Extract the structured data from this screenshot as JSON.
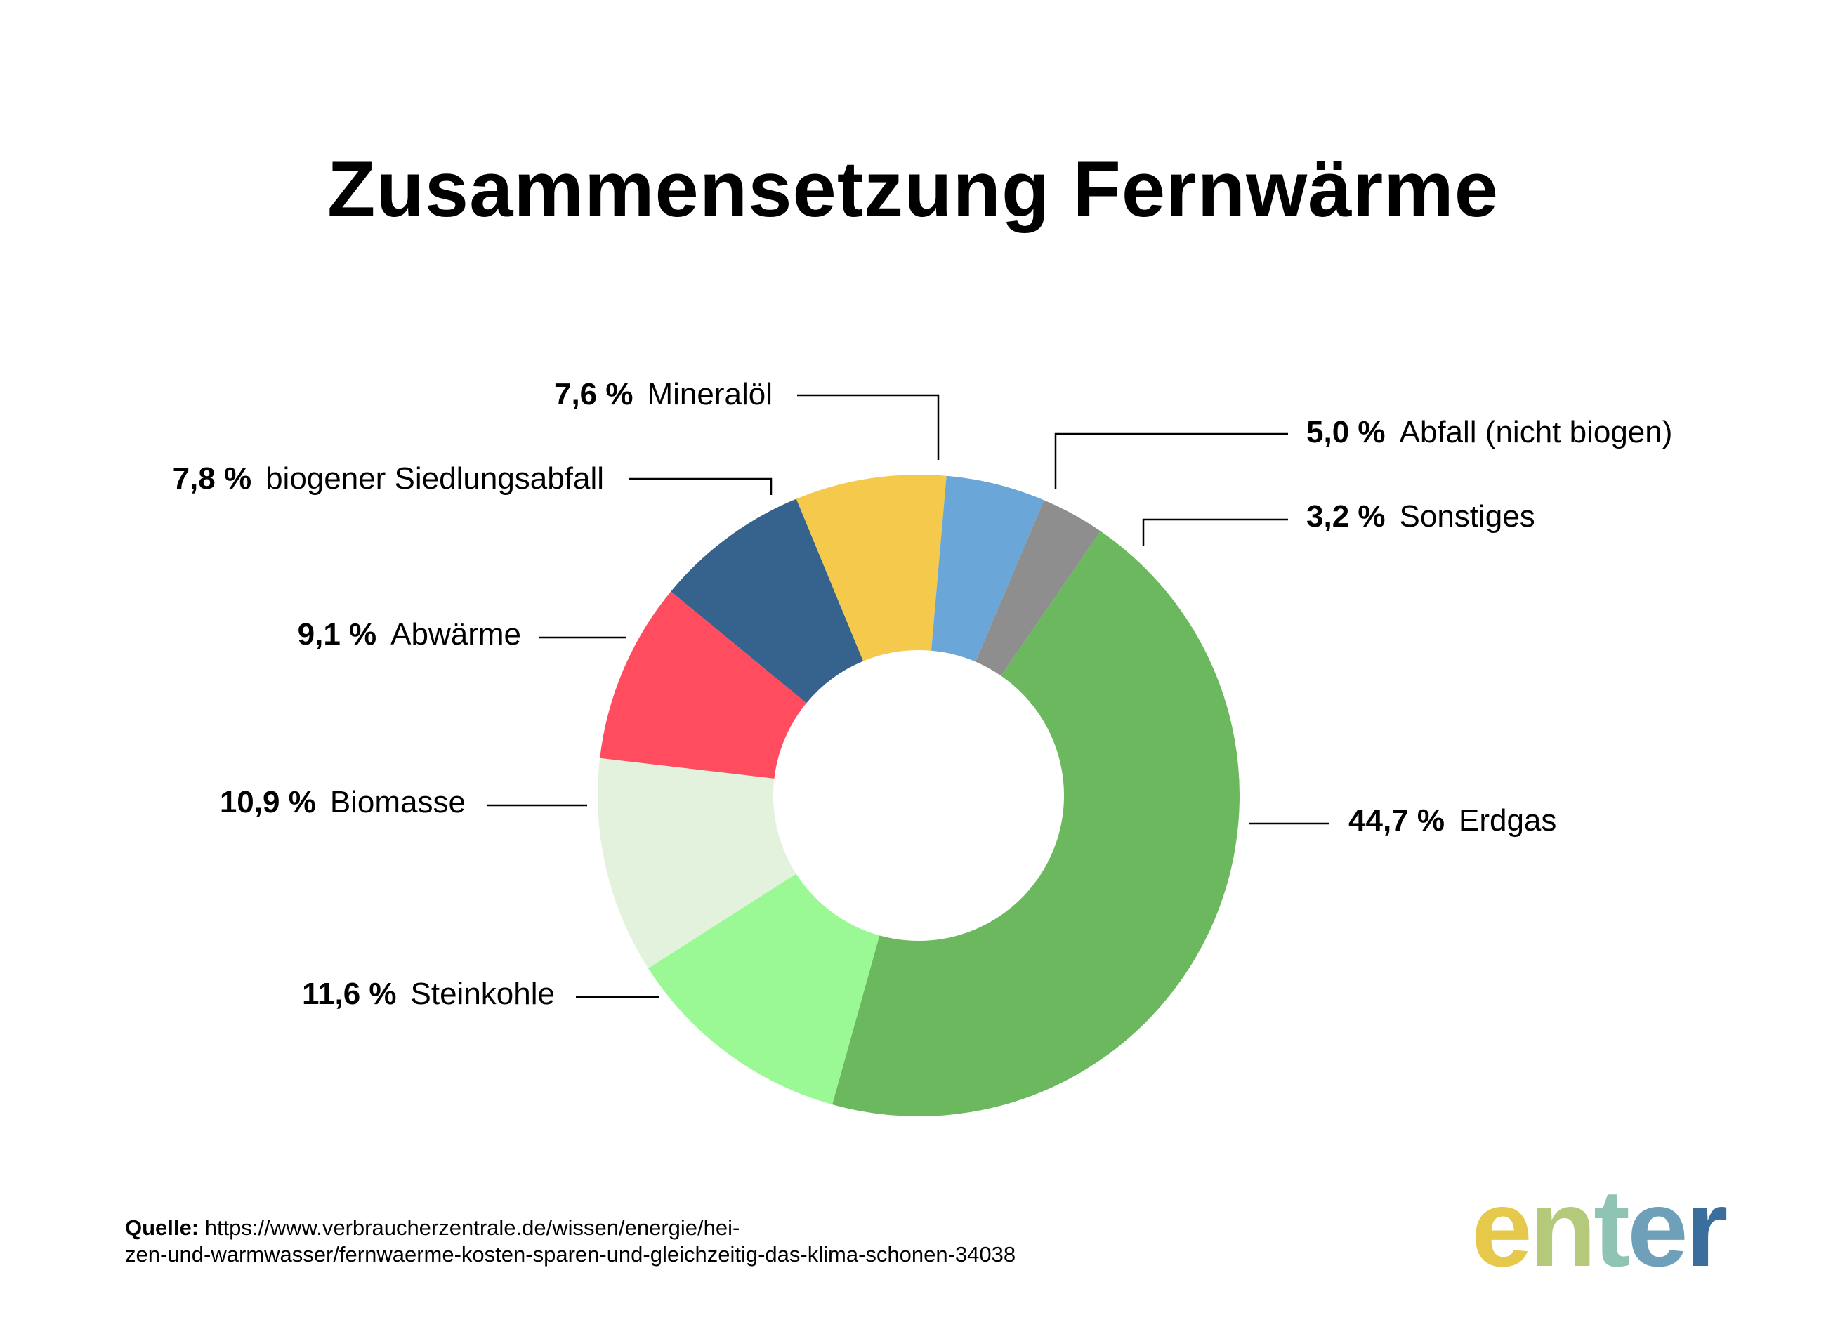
{
  "title": "Zusammensetzung Fernwärme",
  "source": {
    "label": "Quelle:",
    "text": "https://www.verbraucherzentrale.de/wissen/energie/hei-\nzen-und-warmwasser/fernwaerme-kosten-sparen-und-gleichzeitig-das-klima-schonen-34038"
  },
  "logo": {
    "letters": [
      "e",
      "n",
      "t",
      "e",
      "r"
    ],
    "colors": [
      "#E6C84A",
      "#B5C97A",
      "#8FC3B4",
      "#6FA0BA",
      "#3A6E9C"
    ]
  },
  "chart_data": {
    "type": "pie",
    "donut": true,
    "title": "Zusammensetzung Fernwärme",
    "slices": [
      {
        "label": "Sonstiges",
        "value": 3.2,
        "display": "3,2 %",
        "color": "#8E8E8E"
      },
      {
        "label": "Erdgas",
        "value": 44.7,
        "display": "44,7 %",
        "color": "#6CB85E"
      },
      {
        "label": "Steinkohle",
        "value": 11.6,
        "display": "11,6 %",
        "color": "#9BF995"
      },
      {
        "label": "Biomasse",
        "value": 10.9,
        "display": "10,9 %",
        "color": "#E3F2DC"
      },
      {
        "label": "Abwärme",
        "value": 9.1,
        "display": "9,1 %",
        "color": "#FF4D5F"
      },
      {
        "label": "biogener Siedlungsabfall",
        "value": 7.8,
        "display": "7,8 %",
        "color": "#36628E"
      },
      {
        "label": "Mineralöl",
        "value": 7.6,
        "display": "7,6 %",
        "color": "#F4C94C"
      },
      {
        "label": "Abfall (nicht biogen)",
        "value": 5.0,
        "display": "5,0 %",
        "color": "#6BA6D9"
      }
    ]
  }
}
